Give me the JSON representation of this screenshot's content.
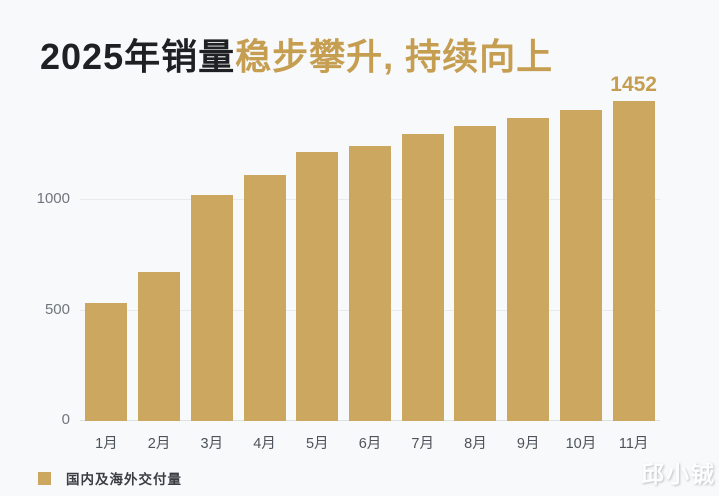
{
  "title": {
    "prefix": "2025年销量",
    "highlight": "稳步攀升, 持续向上"
  },
  "chart_data": {
    "type": "bar",
    "title": "2025年销量稳步攀升, 持续向上",
    "categories": [
      "1月",
      "2月",
      "3月",
      "4月",
      "5月",
      "6月",
      "7月",
      "8月",
      "9月",
      "10月",
      "11月"
    ],
    "values": [
      535,
      675,
      1025,
      1115,
      1220,
      1245,
      1300,
      1335,
      1375,
      1410,
      1452
    ],
    "series_name": "国内及海外交付量",
    "xlabel": "",
    "ylabel": "",
    "ylim": [
      0,
      1455
    ],
    "yticks": [
      0,
      500,
      1000
    ],
    "grid": true,
    "legend_position": "bottom-left",
    "bar_color": "#CCA75F",
    "data_label": {
      "index": 10,
      "text": "1452"
    }
  },
  "legend": {
    "label": "国内及海外交付量"
  },
  "watermark": {
    "text": "邱小铖"
  },
  "colors": {
    "gold_bar": "#CCA75F",
    "gold_text": "#C59E52",
    "background": "#F8F9FA",
    "gridline": "#E8EAEC",
    "title_text": "#1F2023"
  }
}
